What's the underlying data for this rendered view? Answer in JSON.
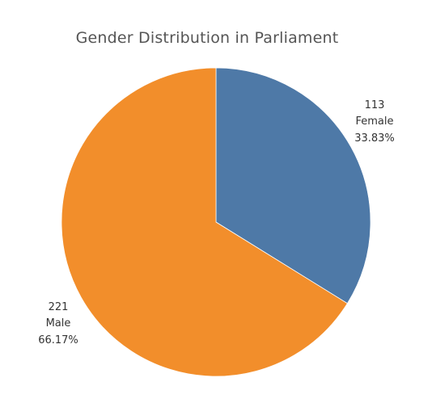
{
  "chart_data": {
    "type": "pie",
    "title": "Gender Distribution in Parliament",
    "slices": [
      {
        "label": "Female",
        "value": 113,
        "percent": "33.83%",
        "color": "#4e79a7"
      },
      {
        "label": "Male",
        "value": 221,
        "percent": "66.17%",
        "color": "#f28e2b"
      }
    ],
    "start": "12 o'clock",
    "direction": "clockwise"
  }
}
